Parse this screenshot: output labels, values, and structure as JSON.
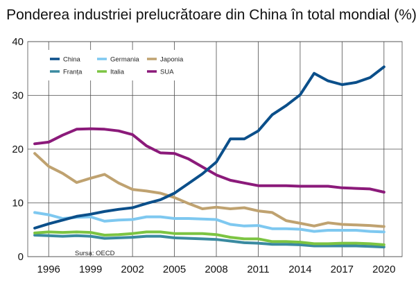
{
  "chart_data": {
    "type": "line",
    "title": "Ponderea industriei prelucrătoare din China în total mondial (%)",
    "xlabel": "",
    "ylabel": "",
    "xlim": [
      1994.5,
      2021.3
    ],
    "ylim": [
      0,
      40
    ],
    "x_ticks": [
      "1996",
      "1999",
      "2002",
      "2005",
      "2008",
      "2011",
      "2014",
      "2017",
      "2020"
    ],
    "y_ticks": [
      "0",
      "10",
      "20",
      "30",
      "40"
    ],
    "grid": true,
    "legend_position": "top-left",
    "source": "Sursa: OECD",
    "x": [
      1995,
      1996,
      1997,
      1998,
      1999,
      2000,
      2001,
      2002,
      2003,
      2004,
      2005,
      2006,
      2007,
      2008,
      2009,
      2010,
      2011,
      2012,
      2013,
      2014,
      2015,
      2016,
      2017,
      2018,
      2019,
      2020
    ],
    "series": [
      {
        "name": "China",
        "color": "#0b4f8a",
        "values": [
          5.3,
          6.1,
          6.8,
          7.5,
          7.9,
          8.4,
          8.8,
          9.1,
          9.9,
          10.6,
          11.8,
          13.6,
          15.4,
          17.6,
          21.9,
          21.9,
          23.4,
          26.4,
          28.1,
          30.1,
          34.1,
          32.7,
          32.0,
          32.4,
          33.3,
          35.3
        ]
      },
      {
        "name": "Germania",
        "color": "#7ec8f0",
        "values": [
          8.2,
          7.8,
          7.1,
          7.3,
          7.4,
          6.6,
          6.8,
          6.9,
          7.4,
          7.4,
          7.1,
          7.1,
          7.0,
          6.9,
          6.0,
          5.7,
          5.8,
          5.2,
          5.2,
          5.1,
          4.7,
          4.9,
          4.9,
          4.9,
          4.7,
          4.6
        ]
      },
      {
        "name": "Japonia",
        "color": "#bfa270",
        "values": [
          19.2,
          16.8,
          15.5,
          13.8,
          14.6,
          15.3,
          13.7,
          12.5,
          12.2,
          11.8,
          11.0,
          9.9,
          8.9,
          9.2,
          8.9,
          9.1,
          8.5,
          8.2,
          6.7,
          6.2,
          5.7,
          6.3,
          6.0,
          5.9,
          5.8,
          5.6
        ]
      },
      {
        "name": "Franța",
        "color": "#3a8aa0",
        "values": [
          4.0,
          3.9,
          3.8,
          3.9,
          3.8,
          3.4,
          3.5,
          3.6,
          3.8,
          3.8,
          3.5,
          3.4,
          3.3,
          3.2,
          2.9,
          2.6,
          2.5,
          2.3,
          2.3,
          2.2,
          2.0,
          2.0,
          2.0,
          2.0,
          1.9,
          1.8
        ]
      },
      {
        "name": "Italia",
        "color": "#7cc442",
        "values": [
          4.4,
          4.6,
          4.5,
          4.6,
          4.5,
          4.0,
          4.1,
          4.3,
          4.6,
          4.6,
          4.3,
          4.3,
          4.3,
          4.1,
          3.6,
          3.3,
          3.3,
          2.8,
          2.8,
          2.7,
          2.4,
          2.4,
          2.5,
          2.5,
          2.4,
          2.2
        ]
      },
      {
        "name": "SUA",
        "color": "#8b1a7a",
        "values": [
          21.0,
          21.3,
          22.6,
          23.7,
          23.8,
          23.7,
          23.4,
          22.7,
          20.6,
          19.3,
          19.2,
          18.2,
          16.7,
          15.2,
          14.2,
          13.7,
          13.2,
          13.2,
          13.2,
          13.1,
          13.1,
          13.1,
          12.8,
          12.7,
          12.6,
          12.0
        ]
      }
    ]
  }
}
